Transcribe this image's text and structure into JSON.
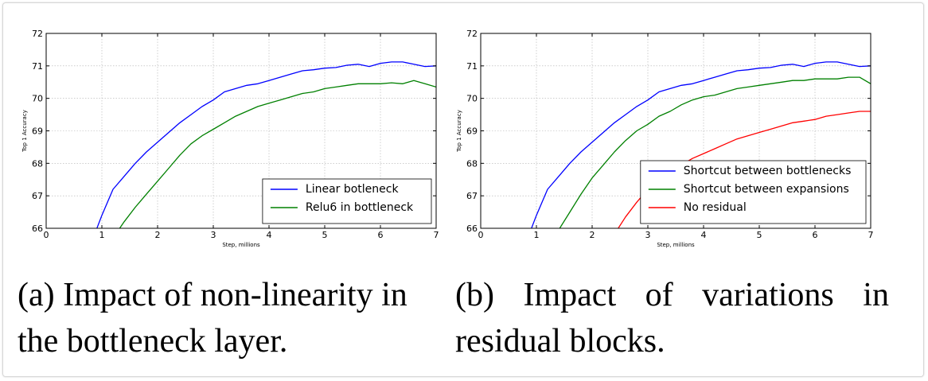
{
  "captions": {
    "a_line1": "(a) Impact of non-linearity in",
    "a_line2": "the bottleneck layer.",
    "b_line1_words": [
      "(b)",
      "Impact",
      "of",
      "variations",
      "in"
    ],
    "b_line2": "residual blocks."
  },
  "chart_data": [
    {
      "type": "line",
      "title": "",
      "xlabel": "Step, millions",
      "ylabel": "Top 1 Accuracy",
      "xlim": [
        0,
        7
      ],
      "ylim": [
        66,
        72
      ],
      "xticks": [
        0,
        1,
        2,
        3,
        4,
        5,
        6,
        7
      ],
      "yticks": [
        66,
        67,
        68,
        69,
        70,
        71,
        72
      ],
      "grid": true,
      "legend_position": "lower-right",
      "series": [
        {
          "name": "Linear botleneck",
          "color": "#0000ff",
          "x": [
            0.9,
            1.0,
            1.2,
            1.4,
            1.6,
            1.8,
            2.0,
            2.2,
            2.4,
            2.6,
            2.8,
            3.0,
            3.2,
            3.4,
            3.6,
            3.8,
            4.0,
            4.2,
            4.4,
            4.6,
            4.8,
            5.0,
            5.2,
            5.4,
            5.6,
            5.8,
            6.0,
            6.2,
            6.4,
            6.6,
            6.8,
            7.0
          ],
          "y": [
            65.95,
            66.4,
            67.2,
            67.6,
            68.0,
            68.35,
            68.65,
            68.95,
            69.25,
            69.5,
            69.75,
            69.95,
            70.2,
            70.3,
            70.4,
            70.45,
            70.55,
            70.65,
            70.75,
            70.85,
            70.88,
            70.93,
            70.95,
            71.02,
            71.05,
            70.98,
            71.08,
            71.12,
            71.12,
            71.05,
            70.98,
            71.0
          ]
        },
        {
          "name": "Relu6 in bottleneck",
          "color": "#008000",
          "x": [
            1.3,
            1.4,
            1.6,
            1.8,
            2.0,
            2.2,
            2.4,
            2.6,
            2.8,
            3.0,
            3.2,
            3.4,
            3.6,
            3.8,
            4.0,
            4.2,
            4.4,
            4.6,
            4.8,
            5.0,
            5.2,
            5.4,
            5.6,
            5.8,
            6.0,
            6.2,
            6.4,
            6.6,
            6.8,
            7.0
          ],
          "y": [
            65.95,
            66.2,
            66.65,
            67.05,
            67.45,
            67.85,
            68.25,
            68.6,
            68.85,
            69.05,
            69.25,
            69.45,
            69.6,
            69.75,
            69.85,
            69.95,
            70.05,
            70.15,
            70.2,
            70.3,
            70.35,
            70.4,
            70.45,
            70.45,
            70.45,
            70.48,
            70.45,
            70.55,
            70.45,
            70.35
          ]
        }
      ]
    },
    {
      "type": "line",
      "title": "",
      "xlabel": "Step, millions",
      "ylabel": "Top 1 Accuracy",
      "xlim": [
        0,
        7
      ],
      "ylim": [
        66,
        72
      ],
      "xticks": [
        0,
        1,
        2,
        3,
        4,
        5,
        6,
        7
      ],
      "yticks": [
        66,
        67,
        68,
        69,
        70,
        71,
        72
      ],
      "grid": true,
      "legend_position": "lower-right",
      "series": [
        {
          "name": "Shortcut between bottlenecks",
          "color": "#0000ff",
          "x": [
            0.9,
            1.0,
            1.2,
            1.4,
            1.6,
            1.8,
            2.0,
            2.2,
            2.4,
            2.6,
            2.8,
            3.0,
            3.2,
            3.4,
            3.6,
            3.8,
            4.0,
            4.2,
            4.4,
            4.6,
            4.8,
            5.0,
            5.2,
            5.4,
            5.6,
            5.8,
            6.0,
            6.2,
            6.4,
            6.6,
            6.8,
            7.0
          ],
          "y": [
            65.95,
            66.4,
            67.2,
            67.6,
            68.0,
            68.35,
            68.65,
            68.95,
            69.25,
            69.5,
            69.75,
            69.95,
            70.2,
            70.3,
            70.4,
            70.45,
            70.55,
            70.65,
            70.75,
            70.85,
            70.88,
            70.93,
            70.95,
            71.02,
            71.05,
            70.98,
            71.08,
            71.12,
            71.12,
            71.05,
            70.98,
            71.0
          ]
        },
        {
          "name": "Shortcut between expansions",
          "color": "#008000",
          "x": [
            1.4,
            1.6,
            1.8,
            2.0,
            2.2,
            2.4,
            2.6,
            2.8,
            3.0,
            3.2,
            3.4,
            3.6,
            3.8,
            4.0,
            4.2,
            4.4,
            4.6,
            4.8,
            5.0,
            5.2,
            5.4,
            5.6,
            5.8,
            6.0,
            6.2,
            6.4,
            6.6,
            6.8,
            7.0
          ],
          "y": [
            65.95,
            66.5,
            67.05,
            67.55,
            67.95,
            68.35,
            68.7,
            69.0,
            69.2,
            69.45,
            69.6,
            69.8,
            69.95,
            70.05,
            70.1,
            70.2,
            70.3,
            70.35,
            70.4,
            70.45,
            70.5,
            70.55,
            70.55,
            70.6,
            70.6,
            70.6,
            70.65,
            70.65,
            70.45
          ]
        },
        {
          "name": "No residual",
          "color": "#ff0000",
          "x": [
            2.45,
            2.6,
            2.8,
            3.0,
            3.2,
            3.4,
            3.6,
            3.8,
            4.0,
            4.2,
            4.4,
            4.6,
            4.8,
            5.0,
            5.2,
            5.4,
            5.6,
            5.8,
            6.0,
            6.2,
            6.4,
            6.6,
            6.8,
            7.0
          ],
          "y": [
            65.95,
            66.35,
            66.8,
            67.2,
            67.5,
            67.75,
            67.95,
            68.15,
            68.3,
            68.45,
            68.6,
            68.75,
            68.85,
            68.95,
            69.05,
            69.15,
            69.25,
            69.3,
            69.35,
            69.45,
            69.5,
            69.55,
            69.6,
            69.6
          ]
        }
      ]
    }
  ]
}
